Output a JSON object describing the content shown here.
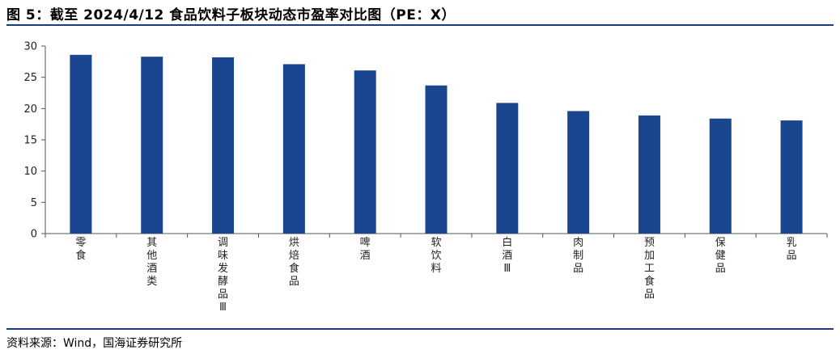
{
  "title": "图 5：截至 2024/4/12 食品饮料子板块动态市盈率对比图（PE：X）",
  "source": "资料来源：Wind，国海证券研究所",
  "chart_data": {
    "type": "bar",
    "categories": [
      "零食",
      "其他酒类",
      "调味发酵品Ⅲ",
      "烘焙食品",
      "啤酒",
      "软饮料",
      "白酒Ⅲ",
      "肉制品",
      "预加工食品",
      "保健品",
      "乳品"
    ],
    "values": [
      28.6,
      28.3,
      28.2,
      27.1,
      26.1,
      23.7,
      20.9,
      19.6,
      18.9,
      18.4,
      18.1
    ],
    "ylim": [
      0,
      30
    ],
    "yticks": [
      0,
      5,
      10,
      15,
      20,
      25,
      30
    ],
    "grid": false,
    "bar_color": "#1a4690"
  }
}
